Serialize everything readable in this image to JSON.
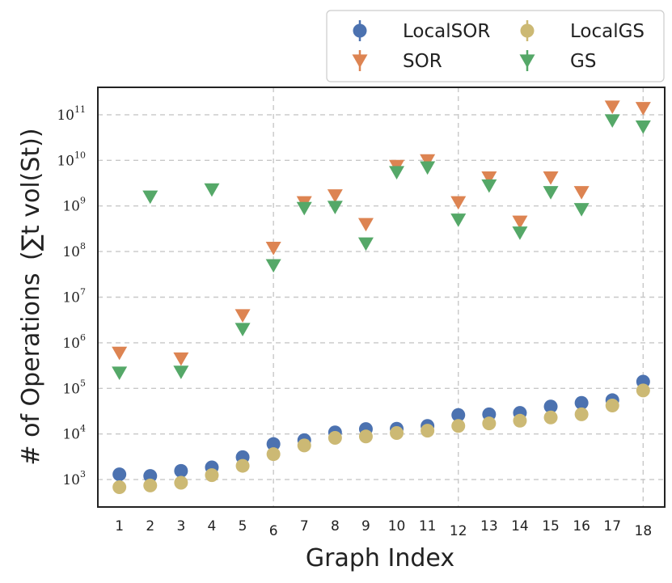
{
  "chart_data": {
    "type": "scatter",
    "xlabel": "Graph Index",
    "ylabel": "# of Operations",
    "ylabel_math": "(∑t vol(St))",
    "yscale": "log",
    "ylim": [
      250,
      400000000000
    ],
    "xlim": [
      0.3,
      18.7
    ],
    "grid": "dashed",
    "legend_position": "top-right",
    "x": [
      1,
      2,
      3,
      4,
      5,
      6,
      7,
      8,
      9,
      10,
      11,
      12,
      13,
      14,
      15,
      16,
      17,
      18
    ],
    "x_ticks": [
      "1",
      "2",
      "3",
      "4",
      "5",
      "6",
      "7",
      "8",
      "9",
      "10",
      "11",
      "12",
      "13",
      "14",
      "15",
      "16",
      "17",
      "18"
    ],
    "y_ticks": [
      {
        "base": "10",
        "exp": "3",
        "value": 1000
      },
      {
        "base": "10",
        "exp": "4",
        "value": 10000
      },
      {
        "base": "10",
        "exp": "5",
        "value": 100000
      },
      {
        "base": "10",
        "exp": "6",
        "value": 1000000
      },
      {
        "base": "10",
        "exp": "7",
        "value": 10000000
      },
      {
        "base": "10",
        "exp": "8",
        "value": 100000000
      },
      {
        "base": "10",
        "exp": "9",
        "value": 1000000000
      },
      {
        "base": "10",
        "exp": "10",
        "value": 10000000000
      },
      {
        "base": "10",
        "exp": "11",
        "value": 100000000000
      }
    ],
    "gridlines_x": [
      6,
      12,
      18
    ],
    "series": [
      {
        "name": "LocalSOR",
        "marker": "circle",
        "color": "#4c72b0",
        "values": [
          1300,
          1200,
          1550,
          1850,
          3100,
          6000,
          7300,
          10800,
          12800,
          13000,
          15000,
          26000,
          27000,
          29000,
          40000,
          48000,
          55000,
          140000
        ]
      },
      {
        "name": "SOR",
        "marker": "triangle-down",
        "color": "#dd8452",
        "values": [
          600000,
          null,
          450000,
          null,
          4000000,
          120000000,
          1200000000,
          1700000000,
          400000000,
          7500000000,
          10000000000,
          1200000000,
          4200000000,
          450000000,
          4200000000,
          2000000000,
          150000000000,
          140000000000
        ]
      },
      {
        "name": "LocalGS",
        "marker": "circle",
        "color": "#ccb974",
        "values": [
          680,
          740,
          850,
          1250,
          2000,
          3600,
          5600,
          8200,
          8800,
          10500,
          11800,
          15000,
          17000,
          19500,
          23000,
          27000,
          42000,
          90000
        ]
      },
      {
        "name": "GS",
        "marker": "triangle-down",
        "color": "#55a868",
        "values": [
          220000,
          1600000000,
          230000,
          2300000000,
          2000000,
          50000000,
          900000000,
          950000000,
          150000000,
          5500000000,
          7000000000,
          500000000,
          2800000000,
          260000000,
          2000000000,
          850000000,
          75000000000,
          55000000000
        ]
      }
    ],
    "legend_order": [
      "LocalSOR",
      "LocalGS",
      "SOR",
      "GS"
    ]
  }
}
